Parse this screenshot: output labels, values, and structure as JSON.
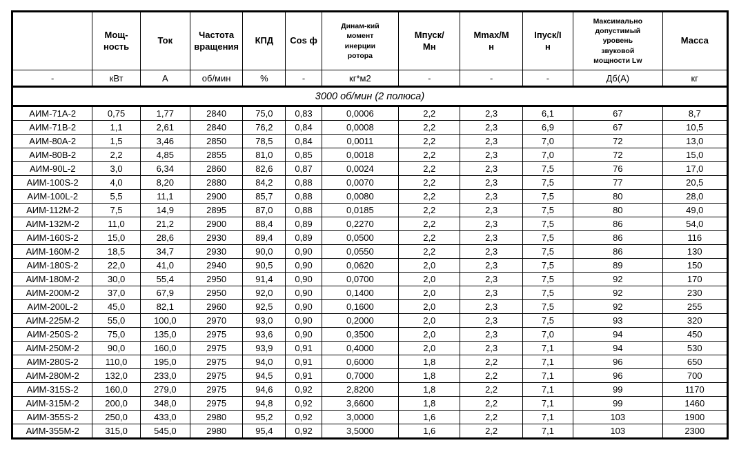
{
  "table": {
    "columns": [
      {
        "label": "",
        "unit": "-"
      },
      {
        "label": "Мощ-\nность",
        "unit": "кВт"
      },
      {
        "label": "Ток",
        "unit": "А"
      },
      {
        "label": "Частота\nвращения",
        "unit": "об/мин"
      },
      {
        "label": "КПД",
        "unit": "%"
      },
      {
        "label": "Cos ф",
        "unit": "-"
      },
      {
        "label": "Динам-кий\nмомент\nинерции\nротора",
        "unit": "кг*м2"
      },
      {
        "label": "Мпуск/\nМн",
        "unit": "-"
      },
      {
        "label": "Mmax/M\nн",
        "unit": "-"
      },
      {
        "label": "Iпуск/I\nн",
        "unit": "-"
      },
      {
        "label": "Максимально\nдопустимый\nуровень\nзвуковой\nмощности Lw",
        "unit": "Дб(А)"
      },
      {
        "label": "Масса",
        "unit": "кг"
      }
    ],
    "section_header": "3000 об/мин (2 полюса)",
    "rows": [
      [
        "АИМ-71А-2",
        "0,75",
        "1,77",
        "2840",
        "75,0",
        "0,83",
        "0,0006",
        "2,2",
        "2,3",
        "6,1",
        "67",
        "8,7"
      ],
      [
        "АИМ-71В-2",
        "1,1",
        "2,61",
        "2840",
        "76,2",
        "0,84",
        "0,0008",
        "2,2",
        "2,3",
        "6,9",
        "67",
        "10,5"
      ],
      [
        "АИМ-80А-2",
        "1,5",
        "3,46",
        "2850",
        "78,5",
        "0,84",
        "0,0011",
        "2,2",
        "2,3",
        "7,0",
        "72",
        "13,0"
      ],
      [
        "АИМ-80В-2",
        "2,2",
        "4,85",
        "2855",
        "81,0",
        "0,85",
        "0,0018",
        "2,2",
        "2,3",
        "7,0",
        "72",
        "15,0"
      ],
      [
        "АИМ-90L-2",
        "3,0",
        "6,34",
        "2860",
        "82,6",
        "0,87",
        "0,0024",
        "2,2",
        "2,3",
        "7,5",
        "76",
        "17,0"
      ],
      [
        "АИМ-100S-2",
        "4,0",
        "8,20",
        "2880",
        "84,2",
        "0,88",
        "0,0070",
        "2,2",
        "2,3",
        "7,5",
        "77",
        "20,5"
      ],
      [
        "АИМ-100L-2",
        "5,5",
        "11,1",
        "2900",
        "85,7",
        "0,88",
        "0,0080",
        "2,2",
        "2,3",
        "7,5",
        "80",
        "28,0"
      ],
      [
        "АИМ-112М-2",
        "7,5",
        "14,9",
        "2895",
        "87,0",
        "0,88",
        "0,0185",
        "2,2",
        "2,3",
        "7,5",
        "80",
        "49,0"
      ],
      [
        "АИМ-132М-2",
        "11,0",
        "21,2",
        "2900",
        "88,4",
        "0,89",
        "0,2270",
        "2,2",
        "2,3",
        "7,5",
        "86",
        "54,0"
      ],
      [
        "АИМ-160S-2",
        "15,0",
        "28,6",
        "2930",
        "89,4",
        "0,89",
        "0,0500",
        "2,2",
        "2,3",
        "7,5",
        "86",
        "116"
      ],
      [
        "АИМ-160М-2",
        "18,5",
        "34,7",
        "2930",
        "90,0",
        "0,90",
        "0,0550",
        "2,2",
        "2,3",
        "7,5",
        "86",
        "130"
      ],
      [
        "АИМ-180S-2",
        "22,0",
        "41,0",
        "2940",
        "90,5",
        "0,90",
        "0,0620",
        "2,0",
        "2,3",
        "7,5",
        "89",
        "150"
      ],
      [
        "АИМ-180М-2",
        "30,0",
        "55,4",
        "2950",
        "91,4",
        "0,90",
        "0,0700",
        "2,0",
        "2,3",
        "7,5",
        "92",
        "170"
      ],
      [
        "АИМ-200М-2",
        "37,0",
        "67,9",
        "2950",
        "92,0",
        "0,90",
        "0,1400",
        "2,0",
        "2,3",
        "7,5",
        "92",
        "230"
      ],
      [
        "АИМ-200L-2",
        "45,0",
        "82,1",
        "2960",
        "92,5",
        "0,90",
        "0,1600",
        "2,0",
        "2,3",
        "7,5",
        "92",
        "255"
      ],
      [
        "АИМ-225М-2",
        "55,0",
        "100,0",
        "2970",
        "93,0",
        "0,90",
        "0,2000",
        "2,0",
        "2,3",
        "7,5",
        "93",
        "320"
      ],
      [
        "АИМ-250S-2",
        "75,0",
        "135,0",
        "2975",
        "93,6",
        "0,90",
        "0,3500",
        "2,0",
        "2,3",
        "7,0",
        "94",
        "450"
      ],
      [
        "АИМ-250М-2",
        "90,0",
        "160,0",
        "2975",
        "93,9",
        "0,91",
        "0,4000",
        "2,0",
        "2,3",
        "7,1",
        "94",
        "530"
      ],
      [
        "АИМ-280S-2",
        "110,0",
        "195,0",
        "2975",
        "94,0",
        "0,91",
        "0,6000",
        "1,8",
        "2,2",
        "7,1",
        "96",
        "650"
      ],
      [
        "АИМ-280М-2",
        "132,0",
        "233,0",
        "2975",
        "94,5",
        "0,91",
        "0,7000",
        "1,8",
        "2,2",
        "7,1",
        "96",
        "700"
      ],
      [
        "АИМ-315S-2",
        "160,0",
        "279,0",
        "2975",
        "94,6",
        "0,92",
        "2,8200",
        "1,8",
        "2,2",
        "7,1",
        "99",
        "1170"
      ],
      [
        "АИМ-315М-2",
        "200,0",
        "348,0",
        "2975",
        "94,8",
        "0,92",
        "3,6600",
        "1,8",
        "2,2",
        "7,1",
        "99",
        "1460"
      ],
      [
        "АИМ-355S-2",
        "250,0",
        "433,0",
        "2980",
        "95,2",
        "0,92",
        "3,0000",
        "1,6",
        "2,2",
        "7,1",
        "103",
        "1900"
      ],
      [
        "АИМ-355М-2",
        "315,0",
        "545,0",
        "2980",
        "95,4",
        "0,92",
        "3,5000",
        "1,6",
        "2,2",
        "7,1",
        "103",
        "2300"
      ]
    ],
    "colors": {
      "border": "#000000",
      "text": "#000000",
      "background": "#ffffff"
    }
  }
}
